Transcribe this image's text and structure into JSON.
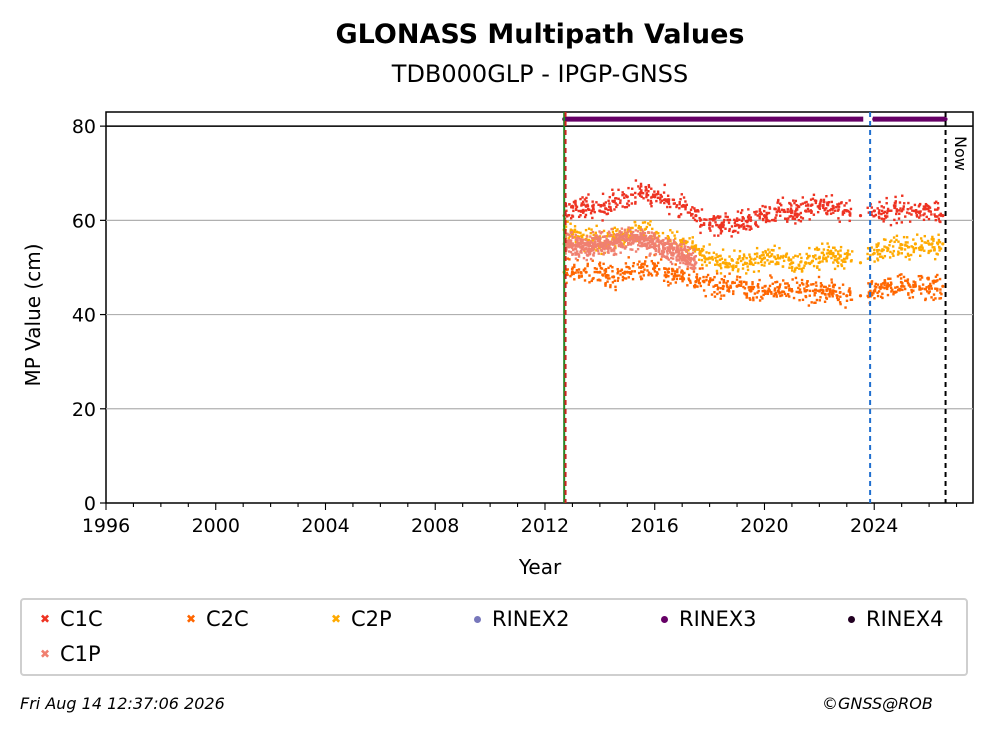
{
  "chart_data": {
    "type": "scatter",
    "title": "GLONASS Multipath Values",
    "subtitle": "TDB000GLP - IPGP-GNSS",
    "xlabel": "Year",
    "ylabel": "MP Value (cm)",
    "xlim": [
      1996,
      2027.6
    ],
    "ylim": [
      0,
      83
    ],
    "xticks": [
      1996,
      2000,
      2004,
      2008,
      2012,
      2016,
      2020,
      2024
    ],
    "yticks": [
      0,
      20,
      40,
      60,
      80
    ],
    "grid": "y-major",
    "series": [
      {
        "name": "C1C",
        "color": "#ee3322",
        "marker": "x",
        "x": [
          2012.7,
          2013.0,
          2013.5,
          2014.0,
          2014.5,
          2015.0,
          2015.5,
          2016.0,
          2016.5,
          2017.0,
          2017.5,
          2018.0,
          2018.5,
          2019.0,
          2019.5,
          2020.0,
          2020.5,
          2021.0,
          2021.5,
          2022.0,
          2022.5,
          2023.0,
          2023.5,
          2024.0,
          2024.5,
          2025.0,
          2025.5,
          2026.0,
          2026.5
        ],
        "y": [
          61,
          63,
          63,
          62,
          64,
          65,
          66,
          65,
          64,
          63,
          61,
          59,
          59,
          59,
          60,
          61,
          62,
          62,
          62,
          63,
          63,
          62,
          61,
          62,
          62,
          62,
          62,
          62,
          61
        ]
      },
      {
        "name": "C2C",
        "color": "#ff6600",
        "marker": "x",
        "x": [
          2012.7,
          2013.0,
          2013.5,
          2014.0,
          2014.5,
          2015.0,
          2015.5,
          2016.0,
          2016.5,
          2017.0,
          2017.5,
          2018.0,
          2018.5,
          2019.0,
          2019.5,
          2020.0,
          2020.5,
          2021.0,
          2021.5,
          2022.0,
          2022.5,
          2023.0,
          2023.5,
          2024.0,
          2024.5,
          2025.0,
          2025.5,
          2026.0,
          2026.5
        ],
        "y": [
          49,
          49,
          49,
          49,
          48,
          49,
          50,
          50,
          49,
          48,
          47,
          47,
          46,
          46,
          45,
          45,
          45,
          45,
          45,
          45,
          45,
          44,
          44,
          45,
          46,
          46,
          46,
          46,
          46
        ]
      },
      {
        "name": "C2P",
        "color": "#ffaa00",
        "marker": "x",
        "x": [
          2012.7,
          2013.0,
          2013.5,
          2014.0,
          2014.5,
          2015.0,
          2015.5,
          2016.0,
          2016.5,
          2017.0,
          2017.5,
          2018.0,
          2018.5,
          2019.0,
          2019.5,
          2020.0,
          2020.5,
          2021.0,
          2021.5,
          2022.0,
          2022.5,
          2023.0,
          2023.5,
          2024.0,
          2024.5,
          2025.0,
          2025.5,
          2026.0,
          2026.5
        ],
        "y": [
          58,
          57,
          56,
          56,
          56,
          57,
          58,
          57,
          56,
          55,
          54,
          52,
          51,
          51,
          51,
          52,
          52,
          51,
          51,
          52,
          53,
          52,
          51,
          53,
          54,
          54,
          55,
          55,
          55
        ]
      },
      {
        "name": "RINEX2",
        "color": "#7777bb",
        "marker": "o",
        "x": [],
        "y": []
      },
      {
        "name": "RINEX3",
        "color": "#660066",
        "marker": "o",
        "x": [
          2012.7,
          2013.5,
          2014.5,
          2015.5,
          2016.5,
          2017.5,
          2018.5,
          2019.5,
          2020.5,
          2021.5,
          2022.5,
          2023.5,
          2024.0,
          2025.0,
          2026.0,
          2026.6
        ],
        "y": [
          81.5,
          81.5,
          81.5,
          81.5,
          81.5,
          81.5,
          81.5,
          81.5,
          81.5,
          81.5,
          81.5,
          81.5,
          81.5,
          81.5,
          81.5,
          81.5
        ]
      },
      {
        "name": "RINEX4",
        "color": "#220022",
        "marker": "o",
        "x": [],
        "y": []
      },
      {
        "name": "C1P",
        "color": "#f08070",
        "marker": "x",
        "x": [
          2012.7,
          2013.0,
          2013.5,
          2014.0,
          2014.5,
          2015.0,
          2015.5,
          2016.0,
          2016.5,
          2017.0,
          2017.5
        ],
        "y": [
          55,
          55,
          54,
          55,
          55,
          56,
          56,
          55,
          54,
          53,
          51
        ]
      }
    ],
    "vertical_lines": [
      {
        "x": 2012.7,
        "color": "#228822",
        "style": "solid"
      },
      {
        "x": 2012.75,
        "color": "#cc2222",
        "style": "dashed"
      },
      {
        "x": 2023.85,
        "color": "#1f6fcf",
        "style": "dashed"
      },
      {
        "x": 2026.6,
        "color": "#000000",
        "style": "dashed",
        "label": "Now"
      }
    ],
    "reference_line": {
      "y": 80,
      "color": "#000000"
    },
    "legend": {
      "placement": "below",
      "entries": [
        "C1C",
        "C2C",
        "C2P",
        "RINEX2",
        "RINEX3",
        "RINEX4",
        "C1P"
      ]
    }
  },
  "footer": {
    "timestamp": "Fri Aug 14 12:37:06 2026",
    "copyright": "©GNSS@ROB"
  }
}
